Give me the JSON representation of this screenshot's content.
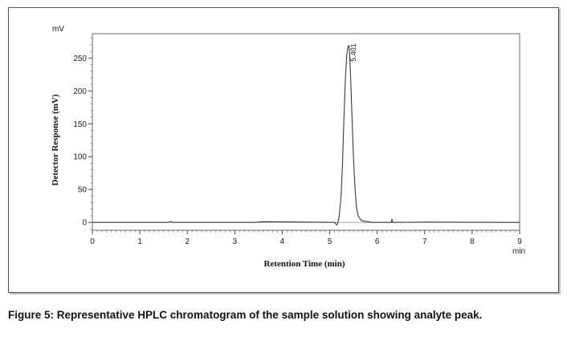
{
  "caption": "Figure 5: Representative HPLC chromatogram of the sample solution showing analyte peak.",
  "chart_data": {
    "type": "line",
    "xlabel": "Retention Time (min)",
    "ylabel": "Detector Response (mV)",
    "x_unit": "min",
    "y_unit": "mV",
    "xlim": [
      0,
      9
    ],
    "ylim": [
      -12,
      287
    ],
    "x_ticks": [
      0,
      1,
      2,
      3,
      4,
      5,
      6,
      7,
      8,
      9
    ],
    "y_ticks": [
      0,
      50,
      100,
      150,
      200,
      250
    ],
    "grid": false,
    "series": [
      {
        "color": "#3a3a3a",
        "x": [
          0,
          1.6,
          1.65,
          1.7,
          3.4,
          3.6,
          5.1,
          5.15,
          5.17,
          5.2,
          5.24,
          5.27,
          5.3,
          5.33,
          5.36,
          5.38,
          5.39,
          5.401,
          5.41,
          5.42,
          5.44,
          5.47,
          5.5,
          5.53,
          5.56,
          5.6,
          5.65,
          5.7,
          5.8,
          5.9,
          6.3,
          6.31,
          6.32,
          6.33,
          6.34,
          7.0,
          9.0
        ],
        "y": [
          0,
          0,
          1,
          0,
          0,
          1,
          0,
          -4,
          -1,
          10,
          40,
          90,
          160,
          220,
          255,
          265,
          268,
          269,
          265,
          255,
          220,
          160,
          100,
          55,
          25,
          10,
          4,
          2,
          1,
          0,
          0,
          5,
          1,
          0,
          0,
          0.5,
          0
        ]
      }
    ],
    "peaks": [
      {
        "x": 5.401,
        "y": 269,
        "label": "5.401"
      }
    ]
  }
}
